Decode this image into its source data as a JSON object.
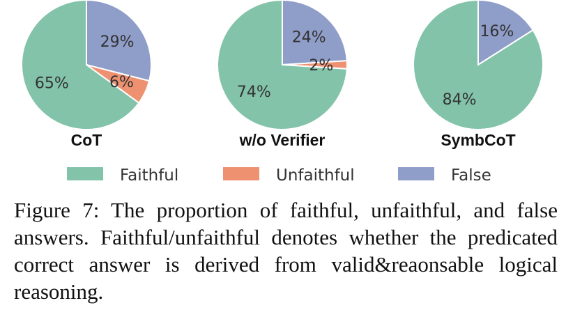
{
  "chart_data": [
    {
      "type": "pie",
      "title": "CoT",
      "slices": [
        {
          "label": "False",
          "value": 29,
          "text": "29%",
          "color": "#8f9dc9"
        },
        {
          "label": "Unfaithful",
          "value": 6,
          "text": "6%",
          "color": "#ed9170"
        },
        {
          "label": "Faithful",
          "value": 65,
          "text": "65%",
          "color": "#82c3a9"
        }
      ]
    },
    {
      "type": "pie",
      "title": "w/o Verifier",
      "slices": [
        {
          "label": "False",
          "value": 24,
          "text": "24%",
          "color": "#8f9dc9"
        },
        {
          "label": "Unfaithful",
          "value": 2,
          "text": "2%",
          "color": "#ed9170"
        },
        {
          "label": "Faithful",
          "value": 74,
          "text": "74%",
          "color": "#82c3a9"
        }
      ]
    },
    {
      "type": "pie",
      "title": "SymbCoT",
      "slices": [
        {
          "label": "False",
          "value": 16,
          "text": "16%",
          "color": "#8f9dc9"
        },
        {
          "label": "Unfaithful",
          "value": 0,
          "text": "",
          "color": "#ed9170"
        },
        {
          "label": "Faithful",
          "value": 84,
          "text": "84%",
          "color": "#82c3a9"
        }
      ]
    }
  ],
  "legend": [
    {
      "label": "Faithful",
      "color": "#82c3a9"
    },
    {
      "label": "Unfaithful",
      "color": "#ed9170"
    },
    {
      "label": "False",
      "color": "#8f9dc9"
    }
  ],
  "caption": "Figure 7:  The proportion of faithful, unfaithful, and false answers. Faithful/unfaithful denotes whether the predicated correct answer is derived from valid&reaonsable logical reasoning."
}
